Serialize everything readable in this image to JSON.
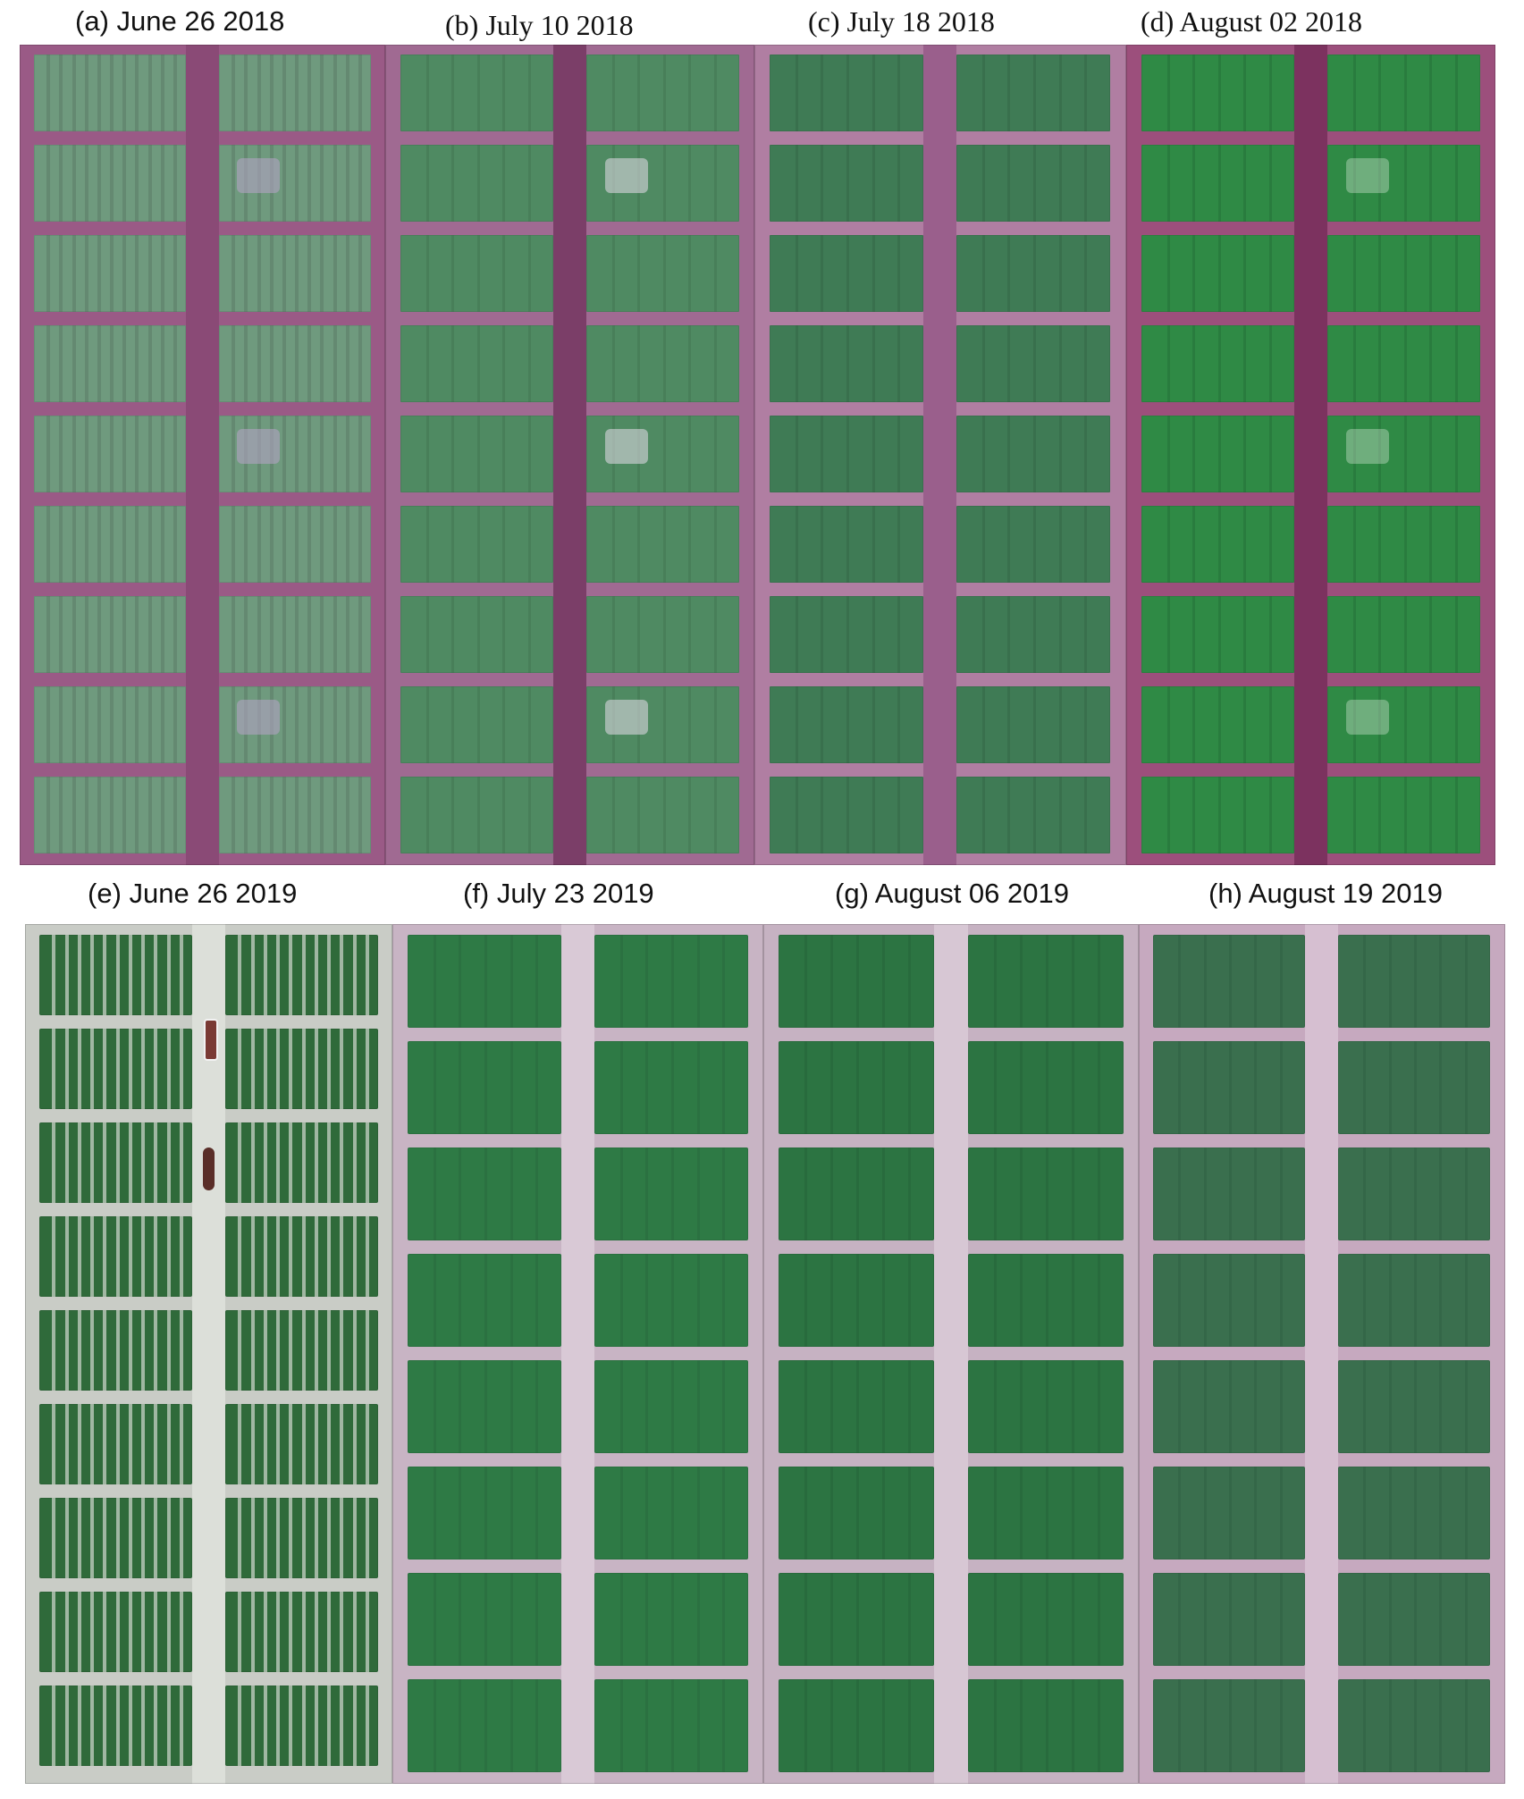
{
  "figure": {
    "panels": [
      {
        "id": "a",
        "label": "(a) June 26 2018",
        "font": "sans",
        "style": {
          "bg": "#9a5a86",
          "road": "#8a4a76",
          "plot": "#6f9a7e",
          "rowline": "#4f6a5a",
          "patch": "#b8a4c8"
        },
        "cols": 2,
        "rows": 9
      },
      {
        "id": "b",
        "label": "(b) July 10 2018",
        "font": "serif",
        "style": {
          "bg": "#a06a92",
          "road": "#7b3e68",
          "plot": "#4f8a62",
          "rowline": "#3d6b4b",
          "patch": "#e6dcea"
        },
        "cols": 2,
        "rows": 9
      },
      {
        "id": "c",
        "label": "(c) July 18 2018",
        "font": "serif",
        "style": {
          "bg": "#b07ea2",
          "road": "#9a5f8c",
          "plot": "#3f7b55",
          "rowline": "#2f5d40",
          "patch": "#e0c8dc"
        },
        "cols": 2,
        "rows": 9
      },
      {
        "id": "d",
        "label": "(d) August 02 2018",
        "font": "serif",
        "style": {
          "bg": "#9c4f7c",
          "road": "#7c325f",
          "plot": "#2f8a45",
          "rowline": "#1f6232",
          "patch": "#e8f0e6"
        },
        "cols": 2,
        "rows": 9
      },
      {
        "id": "e",
        "label": "(e) June 26 2019",
        "font": "sans",
        "style": {
          "bg": "#c9ccc6",
          "road": "#dcdfd9",
          "plot": "#2f6a3a",
          "rowline": "#dde0da",
          "patch": "#5a2e28"
        },
        "cols": 2,
        "rows": 9
      },
      {
        "id": "f",
        "label": "(f) July 23 2019",
        "font": "sans",
        "style": {
          "bg": "#c8b4c4",
          "road": "#d9c9d6",
          "plot": "#2e7a45",
          "rowline": "#25613a",
          "patch": "#eeeeee"
        },
        "cols": 2,
        "rows": 8
      },
      {
        "id": "g",
        "label": "(g) August 06 2019",
        "font": "sans",
        "style": {
          "bg": "#c6b2c2",
          "road": "#d7c7d4",
          "plot": "#2c7442",
          "rowline": "#225c35",
          "patch": "#eeeeee"
        },
        "cols": 2,
        "rows": 8
      },
      {
        "id": "h",
        "label": "(h) August 19 2019",
        "font": "sans",
        "style": {
          "bg": "#c6a9bf",
          "road": "#d6bfd1",
          "plot": "#3a6f4e",
          "rowline": "#2b5a3f",
          "patch": "#dfe9e2"
        },
        "cols": 2,
        "rows": 8
      }
    ]
  }
}
